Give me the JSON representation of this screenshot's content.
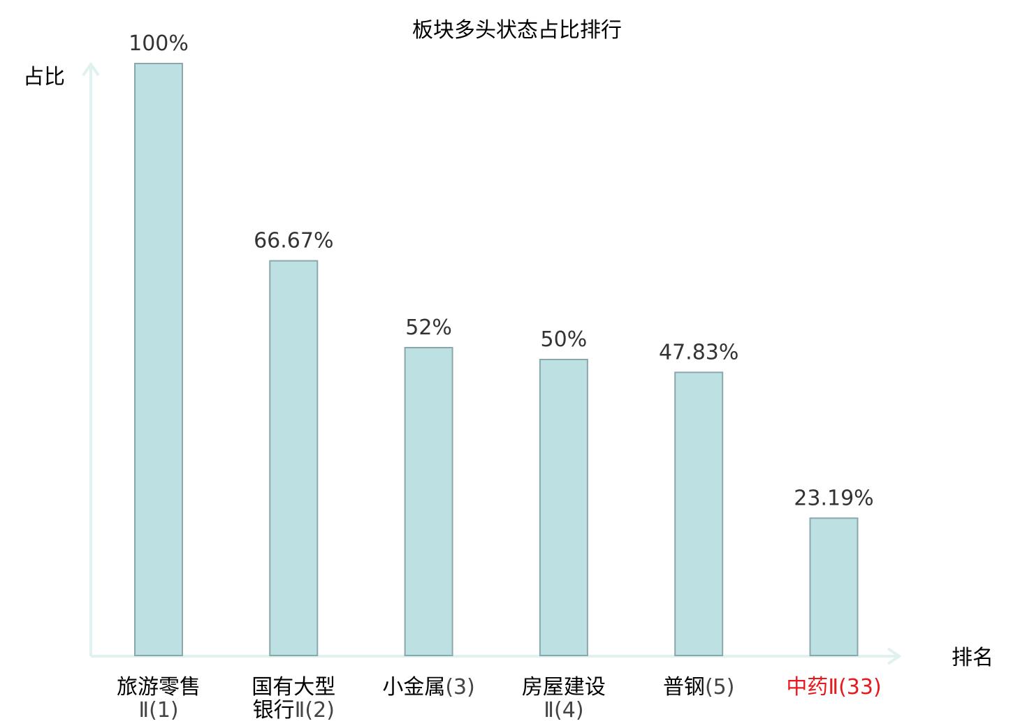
{
  "chart_data": {
    "type": "bar",
    "title": "板块多头状态占比排行",
    "ylabel": "占比",
    "xlabel": "排名",
    "ylim": [
      0,
      100
    ],
    "grid": false,
    "categories": [
      {
        "lines": [
          "旅游零售",
          "Ⅱ(1)"
        ],
        "highlight": false
      },
      {
        "lines": [
          "国有大型",
          "银行Ⅱ(2)"
        ],
        "highlight": false
      },
      {
        "lines": [
          "小金属(3)"
        ],
        "highlight": false
      },
      {
        "lines": [
          "房屋建设",
          "Ⅱ(4)"
        ],
        "highlight": false
      },
      {
        "lines": [
          "普钢(5)"
        ],
        "highlight": false
      },
      {
        "lines": [
          "中药Ⅱ(33)"
        ],
        "highlight": true
      }
    ],
    "values": [
      100,
      66.67,
      52,
      50,
      47.83,
      23.19
    ],
    "value_labels": [
      "100%",
      "66.67%",
      "52%",
      "50%",
      "47.83%",
      "23.19%"
    ],
    "colors": {
      "bar_fill": "#bde0e2",
      "bar_stroke": "#8aa8ac",
      "axis": "#e0f2f0",
      "highlight": "#e8191c"
    }
  }
}
